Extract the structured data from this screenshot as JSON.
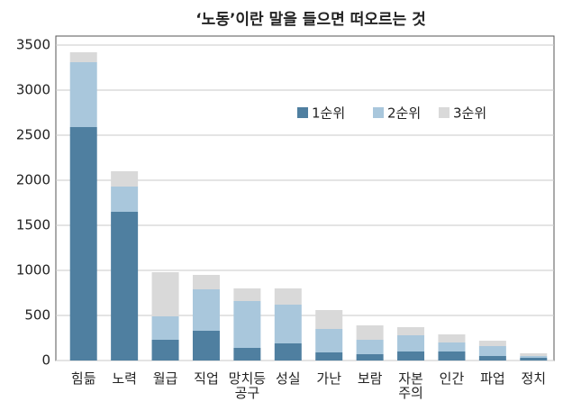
{
  "chart_data": {
    "type": "stacked_bar",
    "title": "‘노동’이란 말을 들으면 떠오르는 것",
    "categories": [
      "힘듦",
      "노력",
      "월급",
      "직업",
      "망치등\n공구",
      "성실",
      "가난",
      "보람",
      "자본\n주의",
      "인간",
      "파업",
      "정치"
    ],
    "series": [
      {
        "name": "1순위",
        "color": "#4f7fa0",
        "values": [
          2590,
          1650,
          230,
          330,
          140,
          190,
          90,
          70,
          100,
          100,
          50,
          30
        ]
      },
      {
        "name": "2순위",
        "color": "#a9c7dc",
        "values": [
          720,
          280,
          260,
          460,
          520,
          430,
          260,
          160,
          180,
          100,
          110,
          20
        ]
      },
      {
        "name": "3순위",
        "color": "#d9d9d9",
        "values": [
          110,
          170,
          490,
          160,
          140,
          180,
          210,
          160,
          90,
          90,
          60,
          30
        ]
      }
    ],
    "ylim": [
      0,
      3500
    ],
    "yticks": [
      0,
      500,
      1000,
      1500,
      2000,
      2500,
      3000,
      3500
    ],
    "grid": true
  }
}
